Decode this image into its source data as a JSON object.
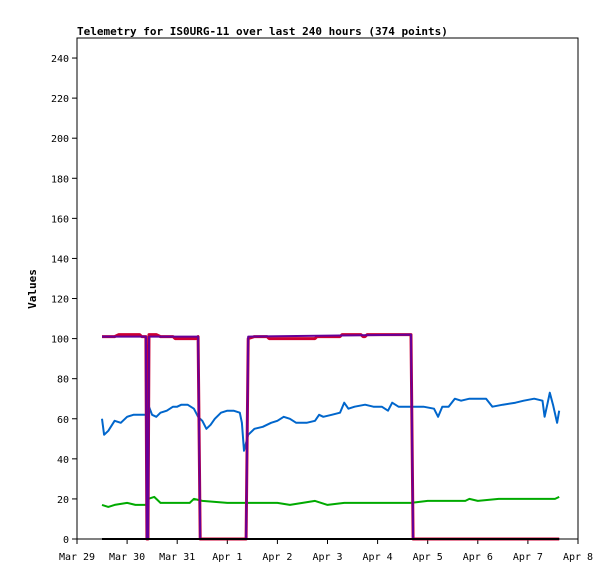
{
  "chart_data": {
    "type": "line",
    "title": "Telemetry for IS0URG-11 over last 240 hours (374 points)",
    "ylabel": "Values",
    "xlabel": "",
    "ylim": [
      0,
      250
    ],
    "yticks": [
      0,
      20,
      40,
      60,
      80,
      100,
      120,
      140,
      160,
      180,
      200,
      220,
      240
    ],
    "xlim": [
      "2021-03-29T00:00",
      "2021-04-08T00:00"
    ],
    "xticks": [
      {
        "t": "2021-03-29T00:00",
        "label": "Mar 29"
      },
      {
        "t": "2021-03-30T00:00",
        "label": "Mar 30"
      },
      {
        "t": "2021-03-31T00:00",
        "label": "Mar 31"
      },
      {
        "t": "2021-04-01T00:00",
        "label": "Apr 1"
      },
      {
        "t": "2021-04-02T00:00",
        "label": "Apr 2"
      },
      {
        "t": "2021-04-03T00:00",
        "label": "Apr 3"
      },
      {
        "t": "2021-04-04T00:00",
        "label": "Apr 4"
      },
      {
        "t": "2021-04-05T00:00",
        "label": "Apr 5"
      },
      {
        "t": "2021-04-06T00:00",
        "label": "Apr 6"
      },
      {
        "t": "2021-04-07T00:00",
        "label": "Apr 7"
      },
      {
        "t": "2021-04-08T00:00",
        "label": "Apr 8"
      }
    ],
    "grid": false,
    "legend": "none",
    "series": [
      {
        "color": "#0066cc",
        "points": [
          [
            "2021-03-29T12:00",
            60
          ],
          [
            "2021-03-29T13:00",
            52
          ],
          [
            "2021-03-29T15:00",
            54
          ],
          [
            "2021-03-29T18:00",
            59
          ],
          [
            "2021-03-29T21:00",
            58
          ],
          [
            "2021-03-30T00:00",
            61
          ],
          [
            "2021-03-30T03:00",
            62
          ],
          [
            "2021-03-30T06:00",
            62
          ],
          [
            "2021-03-30T09:00",
            62
          ],
          [
            "2021-03-30T09:30",
            30
          ],
          [
            "2021-03-30T10:00",
            2
          ],
          [
            "2021-03-30T10:30",
            66
          ],
          [
            "2021-03-30T12:00",
            62
          ],
          [
            "2021-03-30T14:00",
            61
          ],
          [
            "2021-03-30T16:00",
            63
          ],
          [
            "2021-03-30T19:00",
            64
          ],
          [
            "2021-03-30T22:00",
            66
          ],
          [
            "2021-03-31T00:00",
            66
          ],
          [
            "2021-03-31T02:00",
            67
          ],
          [
            "2021-03-31T05:00",
            67
          ],
          [
            "2021-03-31T08:00",
            65
          ],
          [
            "2021-03-31T10:00",
            61
          ],
          [
            "2021-03-31T12:00",
            59
          ],
          [
            "2021-03-31T14:00",
            55
          ],
          [
            "2021-03-31T16:00",
            57
          ],
          [
            "2021-03-31T18:00",
            60
          ],
          [
            "2021-03-31T21:00",
            63
          ],
          [
            "2021-04-01T00:00",
            64
          ],
          [
            "2021-04-01T03:00",
            64
          ],
          [
            "2021-04-01T06:00",
            63
          ],
          [
            "2021-04-01T07:00",
            58
          ],
          [
            "2021-04-01T08:00",
            44
          ],
          [
            "2021-04-01T10:00",
            52
          ],
          [
            "2021-04-01T13:00",
            55
          ],
          [
            "2021-04-01T17:00",
            56
          ],
          [
            "2021-04-01T21:00",
            58
          ],
          [
            "2021-04-02T00:00",
            59
          ],
          [
            "2021-04-02T03:00",
            61
          ],
          [
            "2021-04-02T06:00",
            60
          ],
          [
            "2021-04-02T09:00",
            58
          ],
          [
            "2021-04-02T14:00",
            58
          ],
          [
            "2021-04-02T18:00",
            59
          ],
          [
            "2021-04-02T20:00",
            62
          ],
          [
            "2021-04-02T22:00",
            61
          ],
          [
            "2021-04-03T02:00",
            62
          ],
          [
            "2021-04-03T06:00",
            63
          ],
          [
            "2021-04-03T08:00",
            68
          ],
          [
            "2021-04-03T10:00",
            65
          ],
          [
            "2021-04-03T13:00",
            66
          ],
          [
            "2021-04-03T18:00",
            67
          ],
          [
            "2021-04-03T22:00",
            66
          ],
          [
            "2021-04-04T02:00",
            66
          ],
          [
            "2021-04-04T05:00",
            64
          ],
          [
            "2021-04-04T07:00",
            68
          ],
          [
            "2021-04-04T10:00",
            66
          ],
          [
            "2021-04-04T14:00",
            66
          ],
          [
            "2021-04-04T18:00",
            66
          ],
          [
            "2021-04-04T22:00",
            66
          ],
          [
            "2021-04-05T03:00",
            65
          ],
          [
            "2021-04-05T05:00",
            61
          ],
          [
            "2021-04-05T07:00",
            66
          ],
          [
            "2021-04-05T10:00",
            66
          ],
          [
            "2021-04-05T13:00",
            70
          ],
          [
            "2021-04-05T16:00",
            69
          ],
          [
            "2021-04-05T20:00",
            70
          ],
          [
            "2021-04-06T00:00",
            70
          ],
          [
            "2021-04-06T04:00",
            70
          ],
          [
            "2021-04-06T07:00",
            66
          ],
          [
            "2021-04-06T12:00",
            67
          ],
          [
            "2021-04-06T18:00",
            68
          ],
          [
            "2021-04-06T22:00",
            69
          ],
          [
            "2021-04-07T03:00",
            70
          ],
          [
            "2021-04-07T07:00",
            69
          ],
          [
            "2021-04-07T08:00",
            61
          ],
          [
            "2021-04-07T09:30",
            68
          ],
          [
            "2021-04-07T10:30",
            73
          ],
          [
            "2021-04-07T12:00",
            67
          ],
          [
            "2021-04-07T14:00",
            58
          ],
          [
            "2021-04-07T15:00",
            64
          ]
        ]
      },
      {
        "color": "#00aa00",
        "points": [
          [
            "2021-03-29T12:00",
            17
          ],
          [
            "2021-03-29T15:00",
            16
          ],
          [
            "2021-03-29T18:00",
            17
          ],
          [
            "2021-03-30T00:00",
            18
          ],
          [
            "2021-03-30T04:00",
            17
          ],
          [
            "2021-03-30T09:00",
            17
          ],
          [
            "2021-03-30T10:00",
            20
          ],
          [
            "2021-03-30T13:00",
            21
          ],
          [
            "2021-03-30T16:00",
            18
          ],
          [
            "2021-03-31T00:00",
            18
          ],
          [
            "2021-03-31T06:00",
            18
          ],
          [
            "2021-03-31T08:00",
            20
          ],
          [
            "2021-03-31T12:00",
            19
          ],
          [
            "2021-04-01T00:00",
            18
          ],
          [
            "2021-04-01T12:00",
            18
          ],
          [
            "2021-04-02T00:00",
            18
          ],
          [
            "2021-04-02T06:00",
            17
          ],
          [
            "2021-04-02T12:00",
            18
          ],
          [
            "2021-04-02T18:00",
            19
          ],
          [
            "2021-04-03T00:00",
            17
          ],
          [
            "2021-04-03T08:00",
            18
          ],
          [
            "2021-04-04T00:00",
            18
          ],
          [
            "2021-04-04T16:00",
            18
          ],
          [
            "2021-04-05T00:00",
            19
          ],
          [
            "2021-04-05T18:00",
            19
          ],
          [
            "2021-04-05T20:00",
            20
          ],
          [
            "2021-04-06T00:00",
            19
          ],
          [
            "2021-04-06T10:00",
            20
          ],
          [
            "2021-04-07T00:00",
            20
          ],
          [
            "2021-04-07T13:00",
            20
          ],
          [
            "2021-04-07T15:00",
            21
          ]
        ]
      },
      {
        "color": "#cc0033",
        "points": [
          [
            "2021-03-29T12:00",
            101
          ],
          [
            "2021-03-29T18:00",
            101
          ],
          [
            "2021-03-29T20:00",
            102
          ],
          [
            "2021-03-30T06:00",
            102
          ],
          [
            "2021-03-30T07:00",
            101
          ],
          [
            "2021-03-30T09:00",
            101
          ],
          [
            "2021-03-30T09:30",
            0
          ],
          [
            "2021-03-30T10:00",
            0
          ],
          [
            "2021-03-30T10:30",
            102
          ],
          [
            "2021-03-30T14:00",
            102
          ],
          [
            "2021-03-30T16:00",
            101
          ],
          [
            "2021-03-30T22:00",
            101
          ],
          [
            "2021-03-30T23:00",
            100
          ],
          [
            "2021-03-31T09:00",
            100
          ],
          [
            "2021-03-31T10:00",
            101
          ],
          [
            "2021-03-31T11:00",
            0
          ],
          [
            "2021-04-01T09:00",
            0
          ],
          [
            "2021-04-01T10:00",
            100
          ],
          [
            "2021-04-01T13:00",
            101
          ],
          [
            "2021-04-01T19:00",
            101
          ],
          [
            "2021-04-01T20:00",
            100
          ],
          [
            "2021-04-02T18:00",
            100
          ],
          [
            "2021-04-02T19:00",
            101
          ],
          [
            "2021-04-03T06:00",
            101
          ],
          [
            "2021-04-03T07:00",
            102
          ],
          [
            "2021-04-03T16:00",
            102
          ],
          [
            "2021-04-03T17:00",
            101
          ],
          [
            "2021-04-03T18:00",
            101
          ],
          [
            "2021-04-03T19:00",
            102
          ],
          [
            "2021-04-04T16:00",
            102
          ],
          [
            "2021-04-04T17:00",
            0
          ],
          [
            "2021-04-07T15:00",
            0
          ]
        ]
      },
      {
        "color": "#660099",
        "points": [
          [
            "2021-03-29T12:00",
            101
          ],
          [
            "2021-03-30T09:00",
            101
          ],
          [
            "2021-03-30T09:30",
            0
          ],
          [
            "2021-03-30T10:00",
            0
          ],
          [
            "2021-03-30T10:30",
            101
          ],
          [
            "2021-03-31T10:00",
            101
          ],
          [
            "2021-03-31T11:00",
            0
          ],
          [
            "2021-04-01T09:00",
            0
          ],
          [
            "2021-04-01T10:00",
            101
          ],
          [
            "2021-04-04T16:00",
            102
          ],
          [
            "2021-04-04T17:00",
            0
          ],
          [
            "2021-04-07T15:00",
            0
          ]
        ]
      },
      {
        "color": "#000000",
        "points": [
          [
            "2021-03-29T12:00",
            0
          ],
          [
            "2021-04-07T15:00",
            0
          ]
        ]
      }
    ]
  }
}
